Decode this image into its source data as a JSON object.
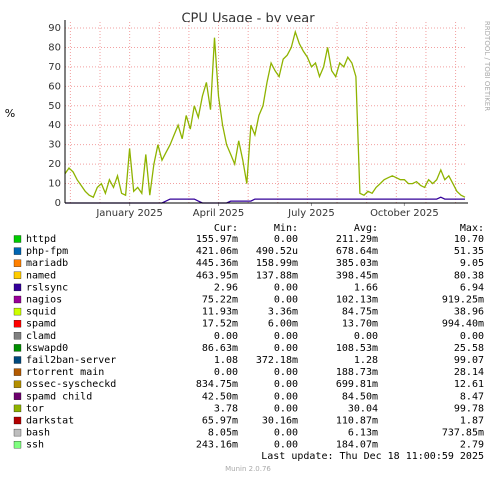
{
  "chart_data": {
    "type": "line",
    "title": "CPU Usage - by year",
    "ylabel": "%",
    "side_label": "RRDTOOL / TOBI OETIKER",
    "xlim": [
      0,
      99
    ],
    "xticks": [
      {
        "value": 16,
        "label": "January 2025"
      },
      {
        "value": 38,
        "label": "April 2025"
      },
      {
        "value": 61,
        "label": "July 2025"
      },
      {
        "value": 84,
        "label": "October 2025"
      }
    ],
    "ylim": [
      0,
      90
    ],
    "yticks": [
      0,
      10,
      20,
      30,
      40,
      50,
      60,
      70,
      80,
      90
    ],
    "grid": true,
    "series": [
      {
        "name": "tor",
        "color": "#8fb300",
        "values": [
          15,
          18,
          16,
          12,
          9,
          6,
          4,
          3,
          8,
          10,
          5,
          12,
          8,
          14,
          5,
          4,
          28,
          6,
          8,
          5,
          25,
          4,
          20,
          30,
          22,
          26,
          30,
          35,
          40,
          33,
          45,
          38,
          50,
          44,
          55,
          62,
          48,
          85,
          55,
          40,
          30,
          25,
          20,
          32,
          22,
          10,
          40,
          35,
          45,
          50,
          62,
          72,
          68,
          65,
          74,
          76,
          80,
          88,
          82,
          78,
          75,
          70,
          72,
          65,
          70,
          80,
          68,
          65,
          72,
          70,
          75,
          72,
          65,
          5,
          4,
          6,
          5,
          8,
          10,
          12,
          13,
          14,
          13,
          12,
          12,
          10,
          10,
          11,
          9,
          8,
          12,
          10,
          12,
          17,
          12,
          14,
          10,
          6,
          4,
          3
        ]
      },
      {
        "name": "rslsync",
        "color": "#330099",
        "values": [
          0,
          0,
          0,
          0,
          0,
          0,
          0,
          0,
          0,
          0,
          0,
          0,
          0,
          0,
          0,
          0,
          0,
          0,
          0,
          0,
          0,
          0,
          0,
          0,
          0,
          1,
          2,
          2,
          2,
          2,
          2,
          2,
          2,
          1,
          0,
          0,
          0,
          0,
          0,
          0,
          0,
          1,
          1,
          1,
          1,
          1,
          1,
          2,
          2,
          2,
          2,
          2,
          2,
          2,
          2,
          2,
          2,
          2,
          2,
          2,
          2,
          2,
          2,
          2,
          2,
          2,
          2,
          2,
          2,
          2,
          2,
          2,
          2,
          2,
          2,
          2,
          2,
          2,
          2,
          2,
          2,
          2,
          2,
          2,
          2,
          2,
          2,
          2,
          2,
          2,
          2,
          2,
          2,
          3,
          2,
          2,
          2,
          2,
          2,
          2
        ]
      }
    ]
  },
  "legend": {
    "columns": [
      "Cur:",
      "Min:",
      "Avg:",
      "Max:"
    ],
    "rows": [
      {
        "name": "httpd",
        "color": "#00cc00",
        "cells": [
          "155.97m",
          "0.00",
          "211.29m",
          "10.70"
        ]
      },
      {
        "name": "php-fpm",
        "color": "#0066b3",
        "cells": [
          "421.06m",
          "490.52u",
          "678.64m",
          "51.35"
        ]
      },
      {
        "name": "mariadb",
        "color": "#ff8000",
        "cells": [
          "445.36m",
          "158.99m",
          "385.03m",
          "9.05"
        ]
      },
      {
        "name": "named",
        "color": "#ffcc00",
        "cells": [
          "463.95m",
          "137.88m",
          "398.45m",
          "80.38"
        ]
      },
      {
        "name": "rslsync",
        "color": "#330099",
        "cells": [
          "2.96",
          "0.00",
          "1.66",
          "6.94"
        ]
      },
      {
        "name": "nagios",
        "color": "#990099",
        "cells": [
          "75.22m",
          "0.00",
          "102.13m",
          "919.25m"
        ]
      },
      {
        "name": "squid",
        "color": "#ccff00",
        "cells": [
          "11.93m",
          "3.36m",
          "84.75m",
          "38.96"
        ]
      },
      {
        "name": "spamd",
        "color": "#ff0000",
        "cells": [
          "17.52m",
          "6.00m",
          "13.70m",
          "994.40m"
        ]
      },
      {
        "name": "clamd",
        "color": "#808080",
        "cells": [
          "0.00",
          "0.00",
          "0.00",
          "0.00"
        ]
      },
      {
        "name": "kswapd0",
        "color": "#008f00",
        "cells": [
          "86.63m",
          "0.00",
          "108.53m",
          "25.58"
        ]
      },
      {
        "name": "fail2ban-server",
        "color": "#00487d",
        "cells": [
          "1.08",
          "372.18m",
          "1.28",
          "99.07"
        ]
      },
      {
        "name": "rtorrent main",
        "color": "#b35a00",
        "cells": [
          "0.00",
          "0.00",
          "188.73m",
          "28.14"
        ]
      },
      {
        "name": "ossec-syscheckd",
        "color": "#b38f00",
        "cells": [
          "834.75m",
          "0.00",
          "699.81m",
          "12.61"
        ]
      },
      {
        "name": "spamd child",
        "color": "#6b006b",
        "cells": [
          "42.50m",
          "0.00",
          "84.50m",
          "8.47"
        ]
      },
      {
        "name": "tor",
        "color": "#8fb300",
        "cells": [
          "3.78",
          "0.00",
          "30.04",
          "99.78"
        ]
      },
      {
        "name": "darkstat",
        "color": "#b30000",
        "cells": [
          "65.97m",
          "30.16m",
          "110.87m",
          "1.87"
        ]
      },
      {
        "name": "bash",
        "color": "#bebebe",
        "cells": [
          "8.05m",
          "0.00",
          "6.13m",
          "737.85m"
        ]
      },
      {
        "name": "ssh",
        "color": "#80ff80",
        "cells": [
          "243.16m",
          "0.00",
          "184.07m",
          "2.79"
        ]
      }
    ]
  },
  "last_update": "Last update: Thu Dec 18 11:00:59 2025",
  "footer": "Munin 2.0.76"
}
